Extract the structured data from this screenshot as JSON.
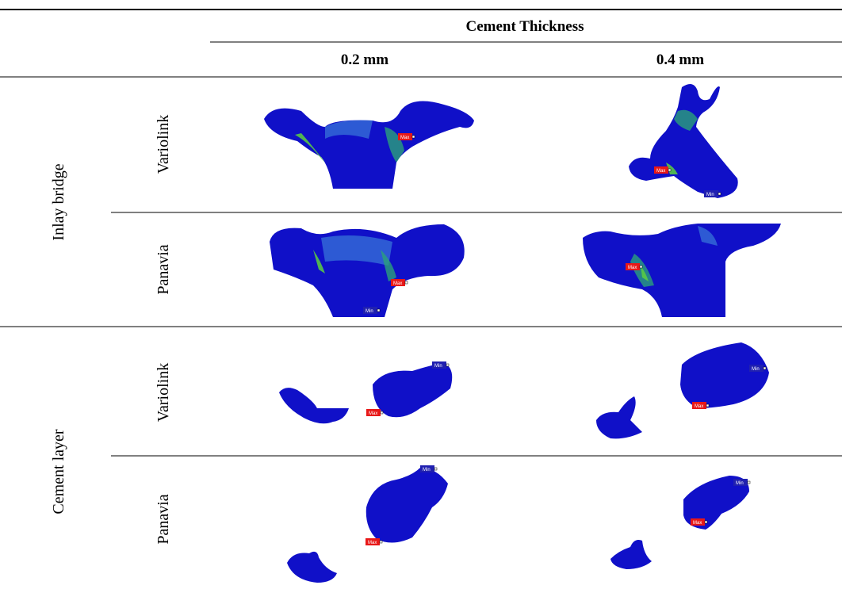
{
  "header": {
    "title": "Cement Thickness",
    "columns": [
      "0.2 mm",
      "0.4 mm"
    ]
  },
  "groups": [
    {
      "label": "Inlay bridge",
      "rows": [
        "Variolink",
        "Panavia"
      ]
    },
    {
      "label": "Cement layer",
      "rows": [
        "Variolink",
        "Panavia"
      ]
    }
  ],
  "markers": {
    "max": "Max",
    "min": "Min"
  }
}
